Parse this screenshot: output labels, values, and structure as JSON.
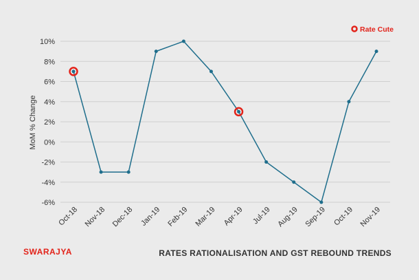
{
  "chart_data": {
    "type": "line",
    "categories": [
      "Oct-18",
      "Nov-18",
      "Dec-18",
      "Jan-19",
      "Feb-19",
      "Mar-19",
      "Apr-19",
      "Jul-19",
      "Aug-19",
      "Sep-19",
      "Oct-19",
      "Nov-19"
    ],
    "series": [
      {
        "values": [
          7,
          -3,
          -3,
          9,
          10,
          7,
          3,
          -2,
          -4,
          -6,
          4,
          9
        ]
      }
    ],
    "highlighted_points": [
      "Oct-18",
      "Apr-19"
    ],
    "ylabel": "MoM % Change",
    "ylim": [
      -6,
      10
    ],
    "yticks": [
      -6,
      -4,
      -2,
      0,
      2,
      4,
      6,
      8,
      10
    ],
    "ytick_labels": [
      "-6%",
      "-4%",
      "-2%",
      "0%",
      "2%",
      "4%",
      "6%",
      "8%",
      "10%"
    ],
    "grid": "horizontal",
    "legend": {
      "label": "Rate Cute",
      "placement": "top-right"
    },
    "colors": {
      "line": "#1f6e8c",
      "highlight": "#e2231a",
      "grid": "#cfcfcf"
    }
  },
  "footer": {
    "brand": "SWARAJYA",
    "title": "RATES RATIONALISATION AND GST REBOUND TRENDS"
  }
}
